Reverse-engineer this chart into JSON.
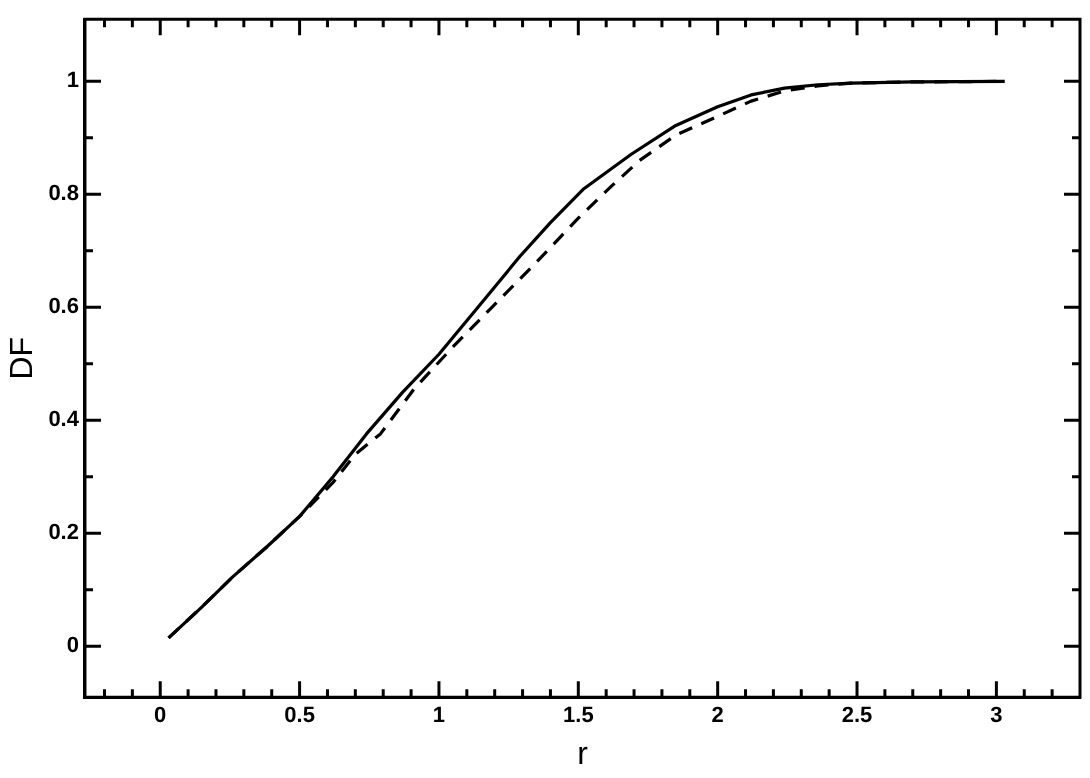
{
  "chart_data": {
    "type": "line",
    "xlabel": "r",
    "ylabel": "DF",
    "xlim": [
      -0.27,
      3.3
    ],
    "ylim": [
      -0.09,
      1.11
    ],
    "xticks": [
      {
        "value": -0.2,
        "label": null
      },
      {
        "value": -0.1,
        "label": null
      },
      0,
      {
        "value": 0.1,
        "label": null
      },
      {
        "value": 0.2,
        "label": null
      },
      {
        "value": 0.3,
        "label": null
      },
      {
        "value": 0.4,
        "label": null
      },
      0.5,
      {
        "value": 0.6,
        "label": null
      },
      {
        "value": 0.7,
        "label": null
      },
      {
        "value": 0.8,
        "label": null
      },
      {
        "value": 0.9,
        "label": null
      },
      1,
      {
        "value": 1.1,
        "label": null
      },
      {
        "value": 1.2,
        "label": null
      },
      {
        "value": 1.3,
        "label": null
      },
      {
        "value": 1.4,
        "label": null
      },
      1.5,
      {
        "value": 1.6,
        "label": null
      },
      {
        "value": 1.7,
        "label": null
      },
      {
        "value": 1.8,
        "label": null
      },
      {
        "value": 1.9,
        "label": null
      },
      2,
      {
        "value": 2.1,
        "label": null
      },
      {
        "value": 2.2,
        "label": null
      },
      {
        "value": 2.3,
        "label": null
      },
      {
        "value": 2.4,
        "label": null
      },
      2.5,
      {
        "value": 2.6,
        "label": null
      },
      {
        "value": 2.7,
        "label": null
      },
      {
        "value": 2.8,
        "label": null
      },
      {
        "value": 2.9,
        "label": null
      },
      3,
      {
        "value": 3.1,
        "label": null
      },
      {
        "value": 3.2,
        "label": null
      }
    ],
    "yticks": [
      0,
      {
        "value": 0.1,
        "label": null
      },
      0.2,
      {
        "value": 0.3,
        "label": null
      },
      0.4,
      {
        "value": 0.5,
        "label": null
      },
      0.6,
      {
        "value": 0.7,
        "label": null
      },
      0.8,
      {
        "value": 0.9,
        "label": null
      },
      1
    ],
    "grid": false,
    "legend": false,
    "marker": "none",
    "series": [
      {
        "color": "#000000",
        "line_style": "solid",
        "x": [
          0.03,
          0.15,
          0.26,
          0.38,
          0.5,
          0.62,
          0.74,
          0.87,
          1.0,
          1.14,
          1.29,
          1.4,
          1.52,
          1.69,
          1.85,
          2.0,
          2.12,
          2.24,
          2.36,
          2.48,
          2.7,
          3.03
        ],
        "values": [
          0.015,
          0.07,
          0.123,
          0.175,
          0.23,
          0.3,
          0.376,
          0.45,
          0.517,
          0.6,
          0.69,
          0.75,
          0.81,
          0.871,
          0.922,
          0.955,
          0.976,
          0.988,
          0.994,
          0.997,
          0.999,
          1.0
        ]
      },
      {
        "color": "#000000",
        "line_style": "dashed",
        "x": [
          0.03,
          0.15,
          0.26,
          0.38,
          0.5,
          0.62,
          0.7,
          0.79,
          0.91,
          1.05,
          1.19,
          1.35,
          1.5,
          1.62,
          1.72,
          1.85,
          2.0,
          2.12,
          2.24,
          2.36,
          2.48,
          2.7,
          3.03
        ],
        "values": [
          0.015,
          0.07,
          0.123,
          0.175,
          0.23,
          0.29,
          0.34,
          0.376,
          0.455,
          0.53,
          0.6,
          0.68,
          0.758,
          0.815,
          0.86,
          0.905,
          0.938,
          0.965,
          0.983,
          0.992,
          0.997,
          0.999,
          1.0
        ]
      }
    ]
  }
}
